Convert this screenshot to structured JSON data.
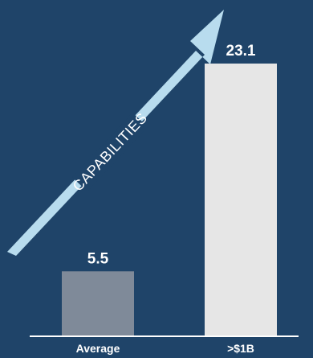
{
  "chart_data": {
    "type": "bar",
    "categories": [
      "Average",
      ">$1B"
    ],
    "values": [
      5.5,
      23.1
    ],
    "data_labels": [
      "5.5",
      "23.1"
    ],
    "title": "",
    "xlabel": "",
    "ylabel": "",
    "ylim": [
      0,
      23.1
    ],
    "grid": false,
    "legend": "none",
    "annotation": "CAPABILITIES"
  },
  "colors": {
    "background": "#1f4469",
    "bars": [
      "#7f8a99",
      "#e6e6e6"
    ],
    "arrow": "#b8dcee",
    "axis": "#ffffff",
    "text": "#ffffff"
  }
}
